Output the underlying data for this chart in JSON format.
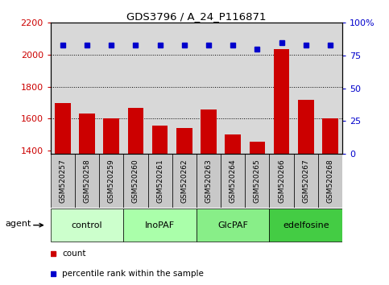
{
  "title": "GDS3796 / A_24_P116871",
  "samples": [
    "GSM520257",
    "GSM520258",
    "GSM520259",
    "GSM520260",
    "GSM520261",
    "GSM520262",
    "GSM520263",
    "GSM520264",
    "GSM520265",
    "GSM520266",
    "GSM520267",
    "GSM520268"
  ],
  "counts": [
    1700,
    1635,
    1600,
    1670,
    1555,
    1540,
    1660,
    1500,
    1455,
    2035,
    1720,
    1600
  ],
  "percentile_values": [
    83,
    83,
    83,
    83,
    83,
    83,
    83,
    83,
    80,
    85,
    83,
    83
  ],
  "groups": [
    {
      "label": "control",
      "start": 0,
      "end": 3,
      "color": "#ccffcc"
    },
    {
      "label": "InoPAF",
      "start": 3,
      "end": 6,
      "color": "#aaffaa"
    },
    {
      "label": "GlcPAF",
      "start": 6,
      "end": 9,
      "color": "#88ee88"
    },
    {
      "label": "edelfosine",
      "start": 9,
      "end": 12,
      "color": "#44cc44"
    }
  ],
  "bar_color": "#cc0000",
  "dot_color": "#0000cc",
  "ylim_left": [
    1380,
    2200
  ],
  "ylim_right": [
    0,
    100
  ],
  "yticks_left": [
    1400,
    1600,
    1800,
    2000,
    2200
  ],
  "yticks_right": [
    0,
    25,
    50,
    75,
    100
  ],
  "grid_values": [
    1600,
    1800,
    2000
  ],
  "left_tick_color": "#cc0000",
  "right_tick_color": "#0000cc",
  "bg_color": "#d8d8d8",
  "sample_box_color": "#c8c8c8",
  "legend_count_color": "#cc0000",
  "legend_dot_color": "#0000cc"
}
